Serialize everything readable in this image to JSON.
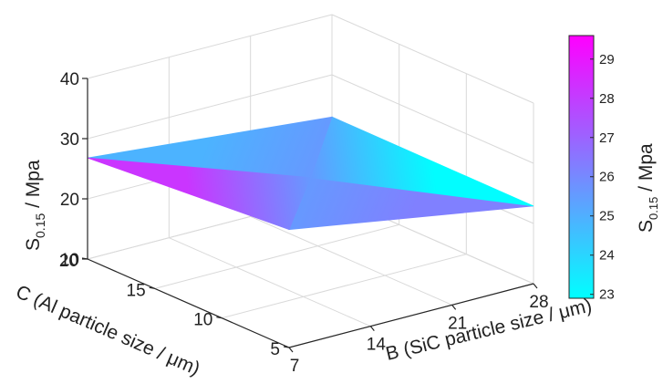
{
  "chart_data": {
    "type": "surface",
    "title": "",
    "xlabel": "B (SiC particle size / μm)",
    "ylabel": "C (Al particle size / μm)",
    "zlabel_main": "S",
    "zlabel_sub": "0.15",
    "zlabel_unit": " / Mpa",
    "x_ticks": [
      7,
      14,
      21,
      28
    ],
    "y_ticks": [
      5,
      10,
      15,
      20
    ],
    "z_ticks": [
      10,
      20,
      30,
      40
    ],
    "xlim": [
      7,
      28
    ],
    "ylim": [
      5,
      20
    ],
    "zlim": [
      10,
      40
    ],
    "grid": true,
    "surface_points": [
      {
        "x": 7,
        "y": 5,
        "z": 29.6
      },
      {
        "x": 28,
        "y": 5,
        "z": 22.9
      },
      {
        "x": 7,
        "y": 20,
        "z": 26.8
      },
      {
        "x": 28,
        "y": 20,
        "z": 23.0
      }
    ],
    "colorbar": {
      "ticks": [
        23,
        24,
        25,
        26,
        27,
        28,
        29
      ],
      "range": [
        22.9,
        29.6
      ],
      "colormap": "cool",
      "low_color": "#00FFFF",
      "high_color": "#FF00FF",
      "label_main": "S",
      "label_sub": "0.15",
      "label_unit": " / Mpa"
    }
  }
}
